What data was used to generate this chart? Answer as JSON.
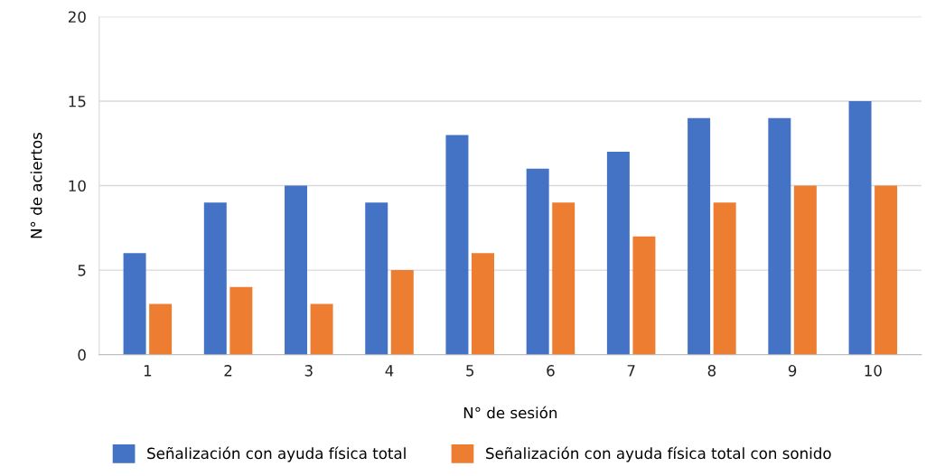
{
  "chart_data": {
    "type": "bar",
    "xlabel": "N° de sesión",
    "ylabel": "N° de aciertos",
    "categories": [
      "1",
      "2",
      "3",
      "4",
      "5",
      "6",
      "7",
      "8",
      "9",
      "10"
    ],
    "series": [
      {
        "name": "Señalización con ayuda física total",
        "color": "#4472c4",
        "values": [
          6,
          9,
          10,
          9,
          13,
          11,
          12,
          14,
          14,
          15
        ]
      },
      {
        "name": "Señalización con ayuda física total con sonido",
        "color": "#ed7d31",
        "values": [
          3,
          4,
          3,
          5,
          6,
          9,
          7,
          9,
          10,
          10
        ]
      }
    ],
    "ylim": [
      0,
      20
    ],
    "yticks": [
      0,
      5,
      10,
      15,
      20
    ],
    "grid": "y",
    "legend": "bottom"
  }
}
